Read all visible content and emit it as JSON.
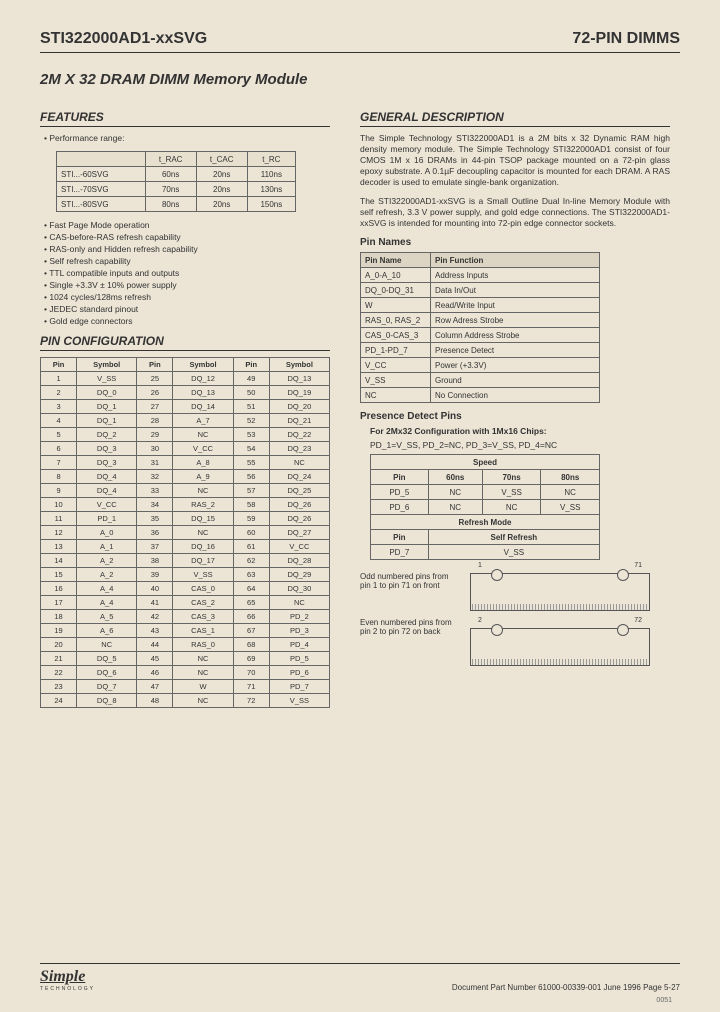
{
  "header": {
    "left": "STI322000AD1-xxSVG",
    "right": "72-PIN DIMMS"
  },
  "subtitle": "2M X 32 DRAM DIMM Memory Module",
  "features": {
    "heading": "FEATURES",
    "bullet_perf": "Performance range:",
    "perf_table": {
      "headers": [
        "",
        "t_RAC",
        "t_CAC",
        "t_RC"
      ],
      "rows": [
        [
          "STI...-60SVG",
          "60ns",
          "20ns",
          "110ns"
        ],
        [
          "STI...-70SVG",
          "70ns",
          "20ns",
          "130ns"
        ],
        [
          "STI...-80SVG",
          "80ns",
          "20ns",
          "150ns"
        ]
      ]
    },
    "bullets": [
      "Fast Page Mode operation",
      "CAS-before-RAS refresh capability",
      "RAS-only and Hidden refresh capability",
      "Self refresh capability",
      "TTL compatible inputs and outputs",
      "Single +3.3V ± 10% power supply",
      "1024 cycles/128ms refresh",
      "JEDEC standard pinout",
      "Gold edge connectors"
    ]
  },
  "pin_config": {
    "heading": "PIN CONFIGURATION",
    "headers": [
      "Pin",
      "Symbol",
      "Pin",
      "Symbol",
      "Pin",
      "Symbol"
    ],
    "rows": [
      [
        "1",
        "V_SS",
        "25",
        "DQ_12",
        "49",
        "DQ_13"
      ],
      [
        "2",
        "DQ_0",
        "26",
        "DQ_13",
        "50",
        "DQ_19"
      ],
      [
        "3",
        "DQ_1",
        "27",
        "DQ_14",
        "51",
        "DQ_20"
      ],
      [
        "4",
        "DQ_1",
        "28",
        "A_7",
        "52",
        "DQ_21"
      ],
      [
        "5",
        "DQ_2",
        "29",
        "NC",
        "53",
        "DQ_22"
      ],
      [
        "6",
        "DQ_3",
        "30",
        "V_CC",
        "54",
        "DQ_23"
      ],
      [
        "7",
        "DQ_3",
        "31",
        "A_8",
        "55",
        "NC"
      ],
      [
        "8",
        "DQ_4",
        "32",
        "A_9",
        "56",
        "DQ_24"
      ],
      [
        "9",
        "DQ_4",
        "33",
        "NC",
        "57",
        "DQ_25"
      ],
      [
        "10",
        "V_CC",
        "34",
        "RAS_2",
        "58",
        "DQ_26"
      ],
      [
        "11",
        "PD_1",
        "35",
        "DQ_15",
        "59",
        "DQ_26"
      ],
      [
        "12",
        "A_0",
        "36",
        "NC",
        "60",
        "DQ_27"
      ],
      [
        "13",
        "A_1",
        "37",
        "DQ_16",
        "61",
        "V_CC"
      ],
      [
        "14",
        "A_2",
        "38",
        "DQ_17",
        "62",
        "DQ_28"
      ],
      [
        "15",
        "A_2",
        "39",
        "V_SS",
        "63",
        "DQ_29"
      ],
      [
        "16",
        "A_4",
        "40",
        "CAS_0",
        "64",
        "DQ_30"
      ],
      [
        "17",
        "A_4",
        "41",
        "CAS_2",
        "65",
        "NC"
      ],
      [
        "18",
        "A_5",
        "42",
        "CAS_3",
        "66",
        "PD_2"
      ],
      [
        "19",
        "A_6",
        "43",
        "CAS_1",
        "67",
        "PD_3"
      ],
      [
        "20",
        "NC",
        "44",
        "RAS_0",
        "68",
        "PD_4"
      ],
      [
        "21",
        "DQ_5",
        "45",
        "NC",
        "69",
        "PD_5"
      ],
      [
        "22",
        "DQ_6",
        "46",
        "NC",
        "70",
        "PD_6"
      ],
      [
        "23",
        "DQ_7",
        "47",
        "W",
        "71",
        "PD_7"
      ],
      [
        "24",
        "DQ_8",
        "48",
        "NC",
        "72",
        "V_SS"
      ]
    ]
  },
  "general": {
    "heading": "GENERAL DESCRIPTION",
    "p1": "The Simple Technology STI322000AD1 is a 2M bits x 32 Dynamic RAM high density memory module. The Simple Technology STI322000AD1 consist of four CMOS 1M x 16 DRAMs in 44-pin TSOP package mounted on a 72-pin glass epoxy substrate. A 0.1µF decoupling capacitor is mounted for each DRAM. A RAS decoder is used to emulate single-bank organization.",
    "p2": "The STI322000AD1-xxSVG is a Small Outline Dual In-line Memory Module with self refresh, 3.3 V power supply, and gold edge connections. The STI322000AD1-xxSVG is intended for mounting into 72-pin edge connector sockets."
  },
  "pin_names": {
    "heading": "Pin Names",
    "headers": [
      "Pin Name",
      "Pin Function"
    ],
    "rows": [
      [
        "A_0-A_10",
        "Address Inputs"
      ],
      [
        "DQ_0-DQ_31",
        "Data In/Out"
      ],
      [
        "W",
        "Read/Write Input"
      ],
      [
        "RAS_0, RAS_2",
        "Row Adress Strobe"
      ],
      [
        "CAS_0-CAS_3",
        "Column Address Strobe"
      ],
      [
        "PD_1-PD_7",
        "Presence Detect"
      ],
      [
        "V_CC",
        "Power (+3.3V)"
      ],
      [
        "V_SS",
        "Ground"
      ],
      [
        "NC",
        "No Connection"
      ]
    ]
  },
  "presence": {
    "heading": "Presence Detect Pins",
    "config_line": "For 2Mx32 Configuration with 1Mx16 Chips:",
    "config_sub": "PD_1=V_SS, PD_2=NC, PD_3=V_SS, PD_4=NC",
    "speed_label": "Speed",
    "speed_headers": [
      "Pin",
      "60ns",
      "70ns",
      "80ns"
    ],
    "speed_rows": [
      [
        "PD_5",
        "NC",
        "V_SS",
        "NC"
      ],
      [
        "PD_6",
        "NC",
        "NC",
        "V_SS"
      ]
    ],
    "refresh_label": "Refresh Mode",
    "refresh_headers": [
      "Pin",
      "Self Refresh"
    ],
    "refresh_rows": [
      [
        "PD_7",
        "V_SS"
      ]
    ]
  },
  "diagram": {
    "odd_text": "Odd numbered pins from pin 1 to pin 71 on front",
    "even_text": "Even numbered pins from pin 2 to pin 72 on back",
    "l1": "1",
    "r1": "71",
    "l2": "2",
    "r2": "72"
  },
  "footer": {
    "logo": "Simple",
    "logo_sub": "TECHNOLOGY",
    "doc": "Document Part Number 61000-00339-001  June 1996     Page 5-27",
    "corner": "0051"
  }
}
